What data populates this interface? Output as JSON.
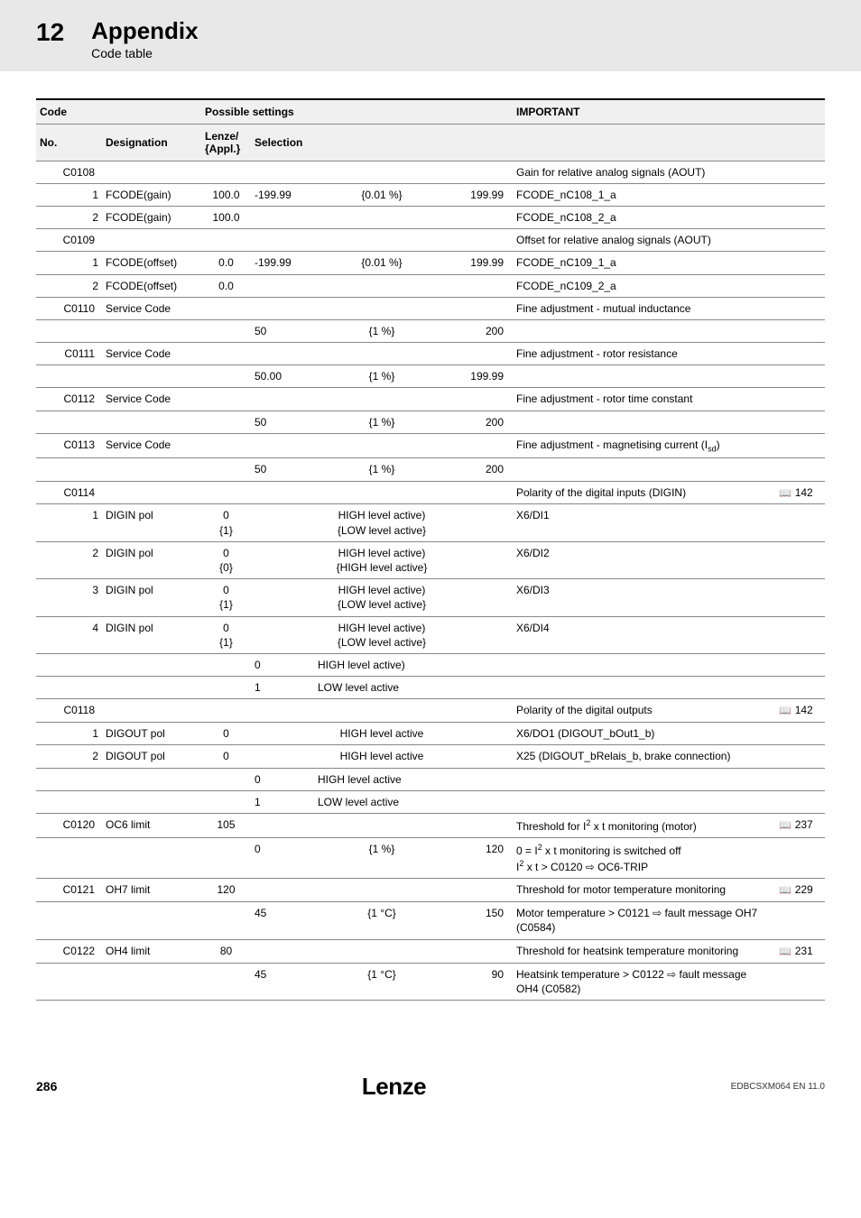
{
  "header": {
    "chapter_num": "12",
    "chapter_title": "Appendix",
    "section_title": "Code table"
  },
  "table": {
    "head": {
      "code": "Code",
      "possible_settings": "Possible settings",
      "important": "IMPORTANT",
      "no": "No.",
      "designation": "Designation",
      "lenze": "Lenze/ {Appl.}",
      "selection": "Selection"
    },
    "rows": {
      "c0108_code": "C0108",
      "c0108_imp": "Gain for relative analog signals (AOUT)",
      "c0108_1_sub": "1",
      "c0108_1_desig": "FCODE(gain)",
      "c0108_1_lenze": "100.0",
      "c0108_1_s1": "-199.99",
      "c0108_1_s2": "{0.01 %}",
      "c0108_1_s3": "199.99",
      "c0108_1_imp": "FCODE_nC108_1_a",
      "c0108_2_sub": "2",
      "c0108_2_desig": "FCODE(gain)",
      "c0108_2_lenze": "100.0",
      "c0108_2_imp": "FCODE_nC108_2_a",
      "c0109_code": "C0109",
      "c0109_imp": "Offset for relative analog signals (AOUT)",
      "c0109_1_sub": "1",
      "c0109_1_desig": "FCODE(offset)",
      "c0109_1_lenze": "0.0",
      "c0109_1_s1": "-199.99",
      "c0109_1_s2": "{0.01 %}",
      "c0109_1_s3": "199.99",
      "c0109_1_imp": "FCODE_nC109_1_a",
      "c0109_2_sub": "2",
      "c0109_2_desig": "FCODE(offset)",
      "c0109_2_lenze": "0.0",
      "c0109_2_imp": "FCODE_nC109_2_a",
      "c0110_code": "C0110",
      "c0110_desig": "Service Code",
      "c0110_imp": "Fine adjustment - mutual inductance",
      "c0110_s1": "50",
      "c0110_s2": "{1 %}",
      "c0110_s3": "200",
      "c0111_code": "C0111",
      "c0111_desig": "Service Code",
      "c0111_imp": "Fine adjustment - rotor resistance",
      "c0111_s1": "50.00",
      "c0111_s2": "{1 %}",
      "c0111_s3": "199.99",
      "c0112_code": "C0112",
      "c0112_desig": "Service Code",
      "c0112_imp": "Fine adjustment - rotor time constant",
      "c0112_s1": "50",
      "c0112_s2": "{1 %}",
      "c0112_s3": "200",
      "c0113_code": "C0113",
      "c0113_desig": "Service Code",
      "c0113_s1": "50",
      "c0113_s2": "{1 %}",
      "c0113_s3": "200",
      "c0114_code": "C0114",
      "c0114_imp": "Polarity of the digital inputs (DIGIN)",
      "c0114_ref": "142",
      "c0114_1_sub": "1",
      "c0114_1_desig": "DIGIN pol",
      "c0114_1_lenze1": "0",
      "c0114_1_lenze2": "{1}",
      "c0114_1_s2a": "HIGH level active)",
      "c0114_1_s2b": "{LOW level active}",
      "c0114_1_imp": "X6/DI1",
      "c0114_2_sub": "2",
      "c0114_2_desig": "DIGIN pol",
      "c0114_2_lenze1": "0",
      "c0114_2_lenze2": "{0}",
      "c0114_2_s2a": "HIGH level active)",
      "c0114_2_s2b": "{HIGH level active}",
      "c0114_2_imp": "X6/DI2",
      "c0114_3_sub": "3",
      "c0114_3_desig": "DIGIN pol",
      "c0114_3_lenze1": "0",
      "c0114_3_lenze2": "{1}",
      "c0114_3_s2a": "HIGH level active)",
      "c0114_3_s2b": "{LOW level active}",
      "c0114_3_imp": "X6/DI3",
      "c0114_4_sub": "4",
      "c0114_4_desig": "DIGIN pol",
      "c0114_4_lenze1": "0",
      "c0114_4_lenze2": "{1}",
      "c0114_4_s2a": "HIGH level active)",
      "c0114_4_s2b": "{LOW level active}",
      "c0114_4_imp": "X6/DI4",
      "c0114_o0_s1": "0",
      "c0114_o0_s2": "HIGH level active)",
      "c0114_o1_s1": "1",
      "c0114_o1_s2": "LOW level active",
      "c0118_code": "C0118",
      "c0118_imp": "Polarity of the digital outputs",
      "c0118_ref": "142",
      "c0118_1_sub": "1",
      "c0118_1_desig": "DIGOUT pol",
      "c0118_1_lenze": "0",
      "c0118_1_s2": "HIGH level active",
      "c0118_1_imp": "X6/DO1 (DIGOUT_bOut1_b)",
      "c0118_2_sub": "2",
      "c0118_2_desig": "DIGOUT pol",
      "c0118_2_lenze": "0",
      "c0118_2_s2": "HIGH level active",
      "c0118_2_imp": "X25 (DIGOUT_bRelais_b, brake connection)",
      "c0118_o0_s1": "0",
      "c0118_o0_s2": "HIGH level active",
      "c0118_o1_s1": "1",
      "c0118_o1_s2": "LOW level active",
      "c0120_code": "C0120",
      "c0120_desig": "OC6 limit",
      "c0120_lenze": "105",
      "c0120_ref": "237",
      "c0120_s1": "0",
      "c0120_s2": "{1 %}",
      "c0120_s3": "120",
      "c0121_code": "C0121",
      "c0121_desig": "OH7 limit",
      "c0121_lenze": "120",
      "c0121_imp": "Threshold for motor temperature monitoring",
      "c0121_ref": "229",
      "c0121_s1": "45",
      "c0121_s2": "{1 °C}",
      "c0121_s3": "150",
      "c0121_imp2": "Motor temperature > C0121 ⇨ fault message OH7 (C0584)",
      "c0122_code": "C0122",
      "c0122_desig": "OH4 limit",
      "c0122_lenze": "80",
      "c0122_imp": "Threshold for heatsink temperature monitoring",
      "c0122_ref": "231",
      "c0122_s1": "45",
      "c0122_s2": "{1 °C}",
      "c0122_s3": "90",
      "c0122_imp2": "Heatsink temperature > C0122 ⇨ fault message OH4 (C0582)"
    }
  },
  "footer": {
    "page_num": "286",
    "brand": "Lenze",
    "doc_id": "EDBCSXM064 EN 11.0"
  }
}
